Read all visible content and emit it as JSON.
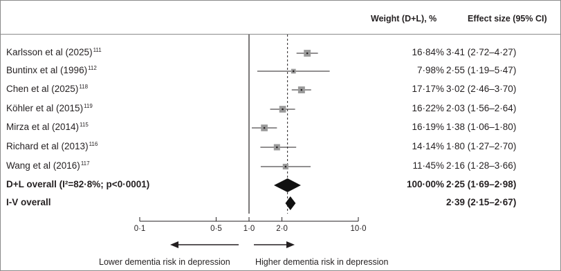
{
  "header": {
    "weight_label": "Weight (D+L), %",
    "effect_label": "Effect size (95% CI)"
  },
  "chart_data": {
    "type": "forest",
    "scale": "log",
    "xlim": [
      0.05,
      12
    ],
    "reference_line": 1.0,
    "overall_line": 2.25,
    "ticks": [
      {
        "value": 0.1,
        "label": "0·1"
      },
      {
        "value": 0.5,
        "label": "0·5"
      },
      {
        "value": 1.0,
        "label": "1·0"
      },
      {
        "value": 2.0,
        "label": "2·0"
      },
      {
        "value": 10.0,
        "label": "10·0"
      }
    ],
    "studies": [
      {
        "name": "Karlsson et al (2025)",
        "ref": "111",
        "weight": "16·84%",
        "effect_text": "3·41 (2·72–4·27)",
        "est": 3.41,
        "lo": 2.72,
        "hi": 4.27,
        "w": 16.84
      },
      {
        "name": "Buntinx et al (1996)",
        "ref": "112",
        "weight": "7·98%",
        "effect_text": "2·55 (1·19–5·47)",
        "est": 2.55,
        "lo": 1.19,
        "hi": 5.47,
        "w": 7.98
      },
      {
        "name": "Chen et al (2025)",
        "ref": "118",
        "weight": "17·17%",
        "effect_text": "3·02 (2·46–3·70)",
        "est": 3.02,
        "lo": 2.46,
        "hi": 3.7,
        "w": 17.17
      },
      {
        "name": "Köhler et al (2015)",
        "ref": "119",
        "weight": "16·22%",
        "effect_text": "2·03 (1·56–2·64)",
        "est": 2.03,
        "lo": 1.56,
        "hi": 2.64,
        "w": 16.22
      },
      {
        "name": "Mirza et al (2014)",
        "ref": "115",
        "weight": "16·19%",
        "effect_text": "1·38 (1·06–1·80)",
        "est": 1.38,
        "lo": 1.06,
        "hi": 1.8,
        "w": 16.19
      },
      {
        "name": "Richard et al (2013)",
        "ref": "116",
        "weight": "14·14%",
        "effect_text": "1·80 (1·27–2·70)",
        "est": 1.8,
        "lo": 1.27,
        "hi": 2.7,
        "w": 14.14
      },
      {
        "name": "Wang et al (2016)",
        "ref": "117",
        "weight": "11·45%",
        "effect_text": "2·16 (1·28–3·66)",
        "est": 2.16,
        "lo": 1.28,
        "hi": 3.66,
        "w": 11.45
      }
    ],
    "overall": [
      {
        "name": "D+L overall (I²=82·8%; p<0·0001)",
        "weight": "100·00%",
        "effect_text": "2·25 (1·69–2·98)",
        "est": 2.25,
        "lo": 1.69,
        "hi": 2.98
      },
      {
        "name": "I-V overall",
        "weight": "",
        "effect_text": "2·39 (2·15–2·67)",
        "est": 2.39,
        "lo": 2.15,
        "hi": 2.67
      }
    ],
    "direction_left": "Lower dementia risk in depression",
    "direction_right": "Higher dementia risk in depression",
    "colors": {
      "frame": "#8a8a8a",
      "box": "#9a9a9a",
      "ink": "#231f20"
    }
  }
}
